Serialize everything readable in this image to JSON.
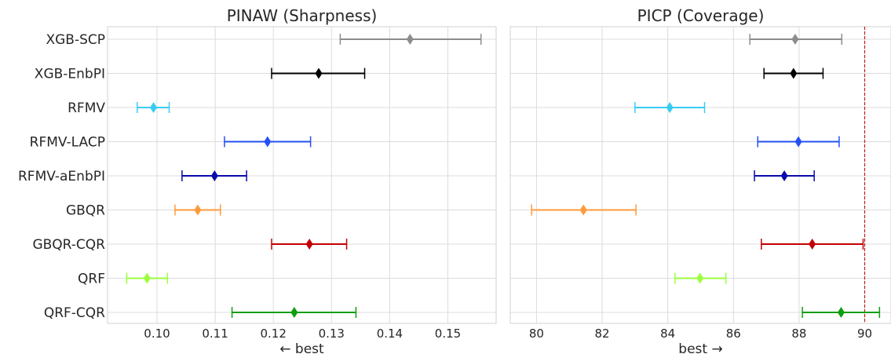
{
  "categories": [
    "XGB-SCP",
    "XGB-EnbPI",
    "RFMV",
    "RFMV-LACP",
    "RFMV-aEnbPI",
    "GBQR",
    "GBQR-CQR",
    "QRF",
    "QRF-CQR"
  ],
  "colors": [
    "#8c8c8c",
    "#000000",
    "#38ccf5",
    "#2450f5",
    "#0a0aad",
    "#ff9a3c",
    "#c40000",
    "#9bff3c",
    "#0e9e0e"
  ],
  "chart_data": [
    {
      "type": "errorbar",
      "title": "PINAW (Sharpness)",
      "xlabel": "← best",
      "ylabel": "",
      "xlim": [
        0.0915,
        0.1583
      ],
      "xticks": [
        0.1,
        0.11,
        0.12,
        0.13,
        0.14,
        0.15
      ],
      "xtick_labels": [
        "0.10",
        "0.11",
        "0.12",
        "0.13",
        "0.14",
        "0.15"
      ],
      "grid": true,
      "points": [
        {
          "category": "XGB-SCP",
          "value": 0.1435,
          "low": 0.1315,
          "high": 0.1557
        },
        {
          "category": "XGB-EnbPI",
          "value": 0.1278,
          "low": 0.1197,
          "high": 0.1357
        },
        {
          "category": "RFMV",
          "value": 0.0994,
          "low": 0.0966,
          "high": 0.1021
        },
        {
          "category": "RFMV-LACP",
          "value": 0.119,
          "low": 0.1116,
          "high": 0.1264
        },
        {
          "category": "RFMV-aEnbPI",
          "value": 0.1099,
          "low": 0.1043,
          "high": 0.1154
        },
        {
          "category": "GBQR",
          "value": 0.107,
          "low": 0.1031,
          "high": 0.1109
        },
        {
          "category": "GBQR-CQR",
          "value": 0.1262,
          "low": 0.1197,
          "high": 0.1326
        },
        {
          "category": "QRF",
          "value": 0.0983,
          "low": 0.0948,
          "high": 0.1018
        },
        {
          "category": "QRF-CQR",
          "value": 0.1236,
          "low": 0.1129,
          "high": 0.1342
        }
      ]
    },
    {
      "type": "errorbar",
      "title": "PICP (Coverage)",
      "xlabel": "best →",
      "ylabel": "",
      "xlim": [
        79.2,
        90.8
      ],
      "xticks": [
        80,
        82,
        84,
        86,
        88,
        90
      ],
      "xtick_labels": [
        "80",
        "82",
        "84",
        "86",
        "88",
        "90"
      ],
      "grid": true,
      "reference_line": {
        "x": 90,
        "style": "dashed",
        "color": "#c40000"
      },
      "points": [
        {
          "category": "XGB-SCP",
          "value": 87.88,
          "low": 86.5,
          "high": 89.3
        },
        {
          "category": "XGB-EnbPI",
          "value": 87.83,
          "low": 86.93,
          "high": 88.73
        },
        {
          "category": "RFMV",
          "value": 84.06,
          "low": 83.0,
          "high": 85.12
        },
        {
          "category": "RFMV-LACP",
          "value": 87.98,
          "low": 86.74,
          "high": 89.22
        },
        {
          "category": "RFMV-aEnbPI",
          "value": 87.55,
          "low": 86.64,
          "high": 88.46
        },
        {
          "category": "GBQR",
          "value": 81.43,
          "low": 79.85,
          "high": 83.03
        },
        {
          "category": "GBQR-CQR",
          "value": 88.4,
          "low": 86.85,
          "high": 89.95
        },
        {
          "category": "QRF",
          "value": 84.98,
          "low": 84.22,
          "high": 85.77
        },
        {
          "category": "QRF-CQR",
          "value": 89.28,
          "low": 88.1,
          "high": 90.45
        }
      ]
    }
  ]
}
